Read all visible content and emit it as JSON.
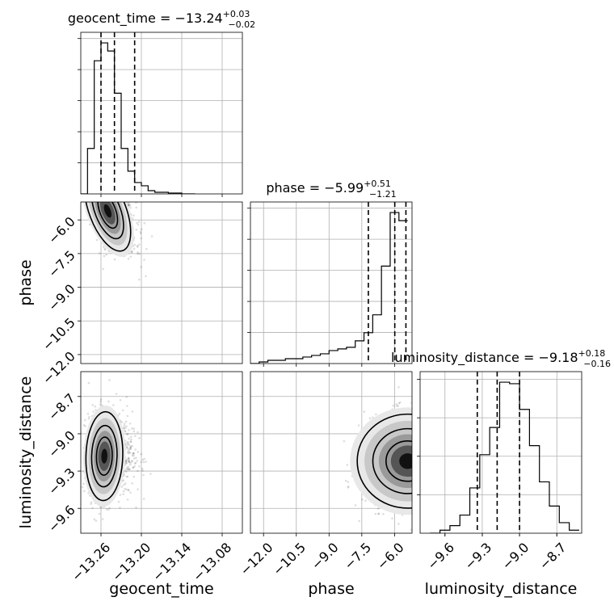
{
  "chart_data": [
    {
      "type": "histogram",
      "panel": "geocent_time-marginal",
      "title": {
        "text": "geocent_time = −13.24",
        "sup": "+0.03",
        "sub": "−0.02"
      },
      "x_range": [
        -13.29,
        -13.05
      ],
      "bin_edges": [
        -13.29,
        -13.28,
        -13.27,
        -13.26,
        -13.25,
        -13.24,
        -13.23,
        -13.22,
        -13.21,
        -13.2,
        -13.19,
        -13.18,
        -13.17,
        -13.16,
        -13.15,
        -13.14,
        -13.13,
        -13.12
      ],
      "counts": [
        0,
        28,
        82,
        93,
        88,
        62,
        28,
        14,
        7,
        5,
        2,
        1,
        1,
        0.5,
        0.5,
        0,
        0
      ],
      "quantiles": [
        -13.26,
        -13.24,
        -13.21
      ],
      "grid": true
    },
    {
      "type": "histogram",
      "panel": "phase-marginal",
      "title": {
        "text": "phase = −5.99",
        "sup": "+0.51",
        "sub": "−1.21"
      },
      "x_range": [
        -12.6,
        -5.2
      ],
      "bin_edges": [
        -12.6,
        -12.2,
        -11.8,
        -11.4,
        -11.0,
        -10.6,
        -10.2,
        -9.8,
        -9.4,
        -9.0,
        -8.6,
        -8.2,
        -7.8,
        -7.4,
        -7.0,
        -6.6,
        -6.2,
        -5.8,
        -5.4
      ],
      "counts": [
        0,
        1,
        2,
        2,
        3,
        3,
        4,
        5,
        6,
        8,
        9,
        10,
        14,
        19,
        30,
        60,
        93,
        88
      ],
      "quantiles": [
        -7.2,
        -5.99,
        -5.48
      ],
      "grid": true
    },
    {
      "type": "histogram",
      "panel": "luminosity_distance-marginal",
      "title": {
        "text": "luminosity_distance = −9.18",
        "sup": "+0.18",
        "sub": "−0.16"
      },
      "x_range": [
        -9.8,
        -8.5
      ],
      "bin_edges": [
        -9.72,
        -9.64,
        -9.56,
        -9.48,
        -9.4,
        -9.32,
        -9.24,
        -9.16,
        -9.08,
        -9.0,
        -8.92,
        -8.84,
        -8.76,
        -8.68,
        -8.6,
        -8.52
      ],
      "counts": [
        0,
        2,
        5,
        12,
        30,
        52,
        70,
        100,
        99,
        82,
        58,
        34,
        18,
        7,
        2
      ],
      "quantiles": [
        -9.34,
        -9.18,
        -9.0
      ],
      "grid": true
    },
    {
      "type": "scatter-density",
      "panel": "geocent_time-vs-phase",
      "x_range": [
        -13.29,
        -13.05
      ],
      "y_range": [
        -12.4,
        -5.2
      ],
      "peak": {
        "x": -13.25,
        "y": -5.6
      },
      "x_spread": 0.013,
      "y_spread": 0.9,
      "correlation": -0.6,
      "grid": true
    },
    {
      "type": "scatter-density",
      "panel": "geocent_time-vs-luminosity_distance",
      "x_range": [
        -13.29,
        -13.05
      ],
      "y_range": [
        -9.8,
        -8.5
      ],
      "peak": {
        "x": -13.255,
        "y": -9.18
      },
      "x_spread": 0.013,
      "y_spread": 0.17,
      "correlation": 0.05,
      "grid": true
    },
    {
      "type": "scatter-density",
      "panel": "phase-vs-luminosity_distance",
      "x_range": [
        -12.6,
        -5.2
      ],
      "y_range": [
        -9.8,
        -8.5
      ],
      "peak": {
        "x": -5.4,
        "y": -9.22
      },
      "x_spread": 1.1,
      "y_spread": 0.18,
      "correlation": 0.0,
      "grid": true
    }
  ],
  "axes": {
    "geocent_time": {
      "label": "geocent_time",
      "ticks": [
        -13.26,
        -13.2,
        -13.14,
        -13.08
      ],
      "tick_labels": [
        "−13.26",
        "−13.20",
        "−13.14",
        "−13.08"
      ]
    },
    "phase_x": {
      "label": "phase",
      "ticks": [
        -12.0,
        -10.5,
        -9.0,
        -7.5,
        -6.0
      ],
      "tick_labels": [
        "−12.0",
        "−10.5",
        "−9.0",
        "−7.5",
        "−6.0"
      ]
    },
    "phase_y": {
      "label": "phase",
      "ticks": [
        -6.0,
        -7.5,
        -9.0,
        -10.5,
        -12.0
      ],
      "tick_labels": [
        "−6.0",
        "−7.5",
        "−9.0",
        "−10.5",
        "−12.0"
      ]
    },
    "luminosity_distance_x": {
      "label": "luminosity_distance",
      "ticks": [
        -9.6,
        -9.3,
        -9.0,
        -8.7
      ],
      "tick_labels": [
        "−9.6",
        "−9.3",
        "−9.0",
        "−8.7"
      ]
    },
    "luminosity_distance_y": {
      "label": "luminosity_distance",
      "ticks": [
        -8.7,
        -9.0,
        -9.3,
        -9.6
      ],
      "tick_labels": [
        "−8.7",
        "−9.0",
        "−9.3",
        "−9.6"
      ]
    }
  }
}
